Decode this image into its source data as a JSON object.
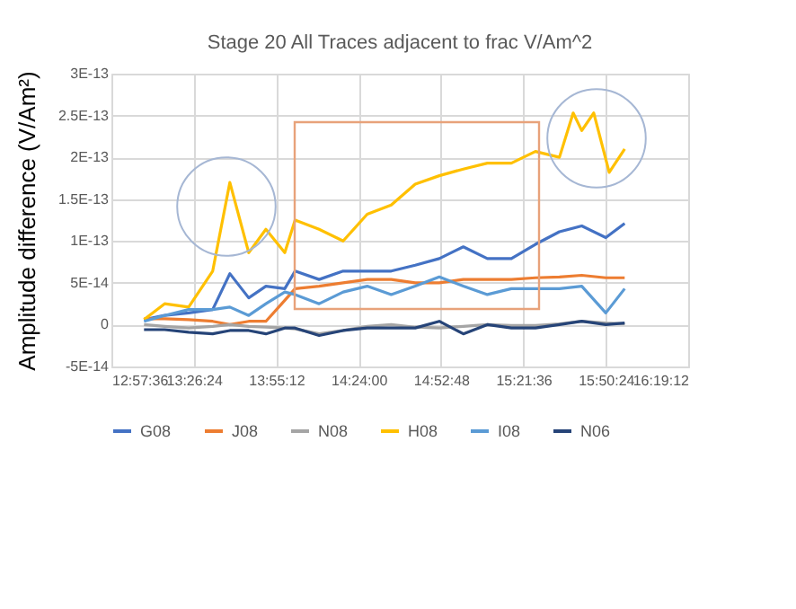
{
  "chart_data": {
    "type": "line",
    "title": "Stage 20 All Traces adjacent to frac V/Am^2",
    "ylabel": "Amplitude difference (V/Am²)",
    "x": [
      13.15,
      13.27,
      13.41,
      13.55,
      13.65,
      13.76,
      13.86,
      13.97,
      14.03,
      14.17,
      14.31,
      14.45,
      14.59,
      14.73,
      14.87,
      15.01,
      15.15,
      15.29,
      15.43,
      15.57,
      15.7,
      15.84,
      15.95
    ],
    "series": [
      {
        "name": "G08",
        "color": "#4472c4",
        "values": [
          6e-15,
          1.1e-14,
          1.4e-14,
          1.8e-14,
          6.1e-14,
          3.2e-14,
          4.6e-14,
          4.3e-14,
          6.4e-14,
          5.4e-14,
          6.4e-14,
          6.4e-14,
          6.4e-14,
          7.1e-14,
          7.9e-14,
          9.3e-14,
          7.9e-14,
          7.9e-14,
          9.6e-14,
          1.11e-13,
          1.18e-13,
          1.04e-13,
          1.21e-13
        ]
      },
      {
        "name": "J08",
        "color": "#ed7d31",
        "values": [
          7e-15,
          7e-15,
          6e-15,
          4e-15,
          0,
          4e-15,
          4e-15,
          2.9e-14,
          4.3e-14,
          4.6e-14,
          5e-14,
          5.4e-14,
          5.4e-14,
          5e-14,
          5e-14,
          5.4e-14,
          5.4e-14,
          5.4e-14,
          5.6e-14,
          5.7e-14,
          5.9e-14,
          5.6e-14,
          5.6e-14
        ]
      },
      {
        "name": "N08",
        "color": "#a5a5a5",
        "values": [
          0,
          -2e-15,
          -4e-15,
          -2e-15,
          0,
          -2e-15,
          -3e-15,
          -4e-15,
          -5e-15,
          -1.1e-14,
          -7e-15,
          -2e-15,
          0,
          -3e-15,
          -4e-15,
          -2e-15,
          0,
          -1e-15,
          -1e-15,
          1e-15,
          4e-15,
          2e-15,
          1e-15
        ]
      },
      {
        "name": "H08",
        "color": "#ffc000",
        "x": [
          13.15,
          13.27,
          13.41,
          13.55,
          13.65,
          13.76,
          13.86,
          13.97,
          14.03,
          14.17,
          14.31,
          14.45,
          14.59,
          14.73,
          14.87,
          15.01,
          15.15,
          15.29,
          15.43,
          15.57,
          15.65,
          15.7,
          15.77,
          15.86,
          15.95
        ],
        "values": [
          6e-15,
          2.5e-14,
          2.1e-14,
          6.4e-14,
          1.7e-13,
          8.6e-14,
          1.14e-13,
          8.6e-14,
          1.25e-13,
          1.14e-13,
          1e-13,
          1.32e-13,
          1.43e-13,
          1.68e-13,
          1.78e-13,
          1.86e-13,
          1.93e-13,
          1.93e-13,
          2.07e-13,
          2e-13,
          2.53e-13,
          2.32e-13,
          2.53e-13,
          1.82e-13,
          2.1e-13
        ]
      },
      {
        "name": "I08",
        "color": "#5b9bd5",
        "values": [
          4e-15,
          1.1e-14,
          1.8e-14,
          1.8e-14,
          2.1e-14,
          1.1e-14,
          2.5e-14,
          3.9e-14,
          3.6e-14,
          2.5e-14,
          3.9e-14,
          4.6e-14,
          3.6e-14,
          4.6e-14,
          5.7e-14,
          4.6e-14,
          3.6e-14,
          4.3e-14,
          4.3e-14,
          4.3e-14,
          4.6e-14,
          1.4e-14,
          4.3e-14
        ]
      },
      {
        "name": "N06",
        "color": "#264478",
        "values": [
          -6e-15,
          -6e-15,
          -9e-15,
          -1.1e-14,
          -7e-15,
          -7e-15,
          -1.1e-14,
          -4e-15,
          -4e-15,
          -1.3e-14,
          -7e-15,
          -4e-15,
          -4e-15,
          -4e-15,
          4e-15,
          -1.1e-14,
          0,
          -4e-15,
          -4e-15,
          0,
          4e-15,
          0,
          2e-15
        ]
      }
    ],
    "xlim": [
      12.96,
      16.32
    ],
    "xticks": [
      {
        "value": 12.96,
        "label": "12:57:36"
      },
      {
        "value": 13.44,
        "label": "13:26:24"
      },
      {
        "value": 13.92,
        "label": "13:55:12"
      },
      {
        "value": 14.4,
        "label": "14:24:00"
      },
      {
        "value": 14.88,
        "label": "14:52:48"
      },
      {
        "value": 15.36,
        "label": "15:21:36"
      },
      {
        "value": 15.84,
        "label": "15:50:24"
      },
      {
        "value": 16.32,
        "label": "16:19:12"
      }
    ],
    "ylim": [
      -5e-14,
      3e-13
    ],
    "yticks": [
      {
        "value": -5e-14,
        "label": "-5E-14"
      },
      0,
      {
        "value": 5e-14,
        "label": "5E-14"
      },
      {
        "value": 1e-13,
        "label": "1E-13"
      },
      {
        "value": 1.5e-13,
        "label": "1.5E-13"
      },
      {
        "value": 2e-13,
        "label": "2E-13"
      },
      {
        "value": 2.5e-13,
        "label": "2.5E-13"
      },
      {
        "value": 3e-13,
        "label": "3E-13"
      }
    ],
    "grid": true,
    "legend": "bottom",
    "marker": "none",
    "line_style": "solid"
  }
}
